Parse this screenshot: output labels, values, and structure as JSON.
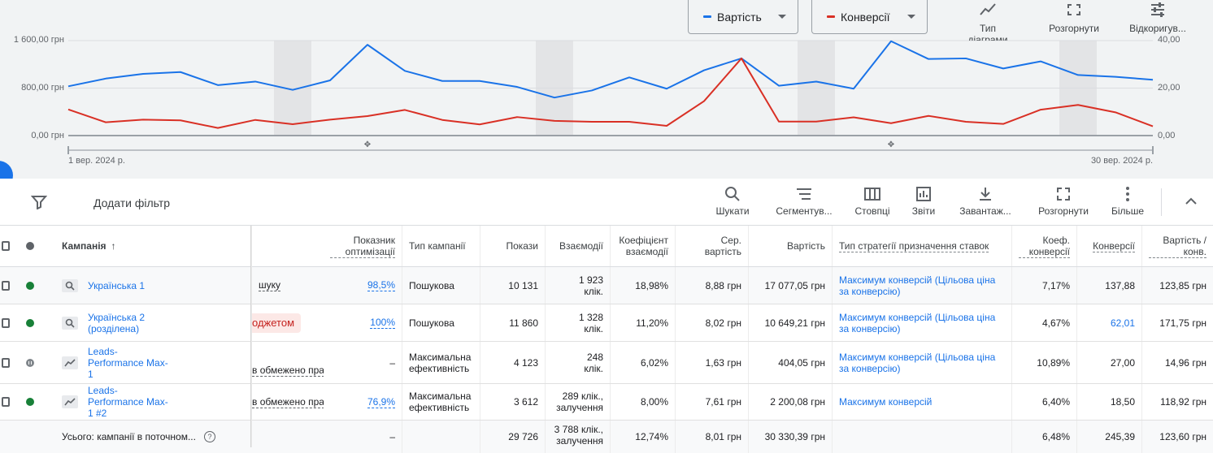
{
  "chart": {
    "metric1_label": "Вартість",
    "metric1_color": "#1a73e8",
    "metric2_label": "Конверсії",
    "metric2_color": "#d93025",
    "tools": [
      {
        "label": "Тип діаграми",
        "icon": "line-chart-icon"
      },
      {
        "label": "Розгорнути",
        "icon": "expand-icon"
      },
      {
        "label": "Відкоригув...",
        "icon": "tune-icon"
      }
    ],
    "y_left_ticks": [
      "1 600,00 грн",
      "800,00 грн",
      "0,00 грн"
    ],
    "y_right_ticks": [
      "40,00",
      "20,00",
      "0,00"
    ],
    "x_start": "1 вер. 2024 р.",
    "x_end": "30 вер. 2024 р."
  },
  "chart_data": {
    "type": "line",
    "x": [
      "1",
      "2",
      "3",
      "4",
      "5",
      "6",
      "7",
      "8",
      "9",
      "10",
      "11",
      "12",
      "13",
      "14",
      "15",
      "16",
      "17",
      "18",
      "19",
      "20",
      "21",
      "22",
      "23",
      "24",
      "25",
      "26",
      "27",
      "28",
      "29",
      "30"
    ],
    "series": [
      {
        "name": "Вартість",
        "axis": "left",
        "color": "#1a73e8",
        "values": [
          830,
          960,
          1040,
          1070,
          850,
          910,
          770,
          930,
          1530,
          1090,
          920,
          920,
          820,
          640,
          760,
          980,
          790,
          1100,
          1300,
          840,
          910,
          790,
          1590,
          1290,
          1300,
          1130,
          1250,
          1020,
          990,
          940
        ]
      },
      {
        "name": "Конверсії",
        "axis": "right",
        "color": "#d93025",
        "values": [
          11,
          5.6,
          6.7,
          6.4,
          3.2,
          6.6,
          4.8,
          6.7,
          8.2,
          10.8,
          6.6,
          4.7,
          7.8,
          6.2,
          5.8,
          5.8,
          4.1,
          14.5,
          32.5,
          5.9,
          5.9,
          7.7,
          5.2,
          8.3,
          5.8,
          4.9,
          10.9,
          12.9,
          9.8,
          3.9
        ]
      }
    ],
    "ylim_left": [
      0,
      1600
    ],
    "ylim_right": [
      0,
      40
    ],
    "weekends": [
      7,
      14,
      21,
      28
    ],
    "xlabel": "",
    "ylabel": ""
  },
  "toolbar": {
    "add_filter": "Додати фільтр",
    "buttons": [
      {
        "label": "Шукати",
        "icon": "search-icon"
      },
      {
        "label": "Сегментув...",
        "icon": "segment-icon"
      },
      {
        "label": "Стовпці",
        "icon": "columns-icon"
      },
      {
        "label": "Звіти",
        "icon": "reports-icon"
      },
      {
        "label": "Завантаж...",
        "icon": "download-icon"
      },
      {
        "label": "Розгорнути",
        "icon": "fullscreen-icon"
      },
      {
        "label": "Більше",
        "icon": "more-vert-icon"
      }
    ]
  },
  "table": {
    "headers": {
      "campaign": "Кампанія",
      "opt_score": "Показник оптимізації",
      "type": "Тип кампанії",
      "impressions": "Покази",
      "interactions": "Взаємодії",
      "interaction_rate": "Коефіцієнт взаємодії",
      "avg_cost": "Сер. вартість",
      "cost": "Вартість",
      "bid_strategy": "Тип стратегії призначення ставок",
      "conv_rate": "Коеф. конверсії",
      "conversions": "Конверсії",
      "cost_per_conv": "Вартість / конв."
    },
    "rows": [
      {
        "status": "enabled",
        "name": "Українська 1",
        "status_text": "шуку",
        "opt_score": "98,5%",
        "type": "Пошукова",
        "impressions": "10 131",
        "interactions": "1 923 клік.",
        "interaction_rate": "18,98%",
        "avg_cost": "8,88 грн",
        "cost": "17 077,05 грн",
        "bid_strategy": "Максимум конверсій (Цільова ціна за конверсію)",
        "conv_rate": "7,17%",
        "conversions": "137,88",
        "cost_per_conv": "123,85 грн",
        "icon": "search-campaign-icon"
      },
      {
        "status": "enabled",
        "name": "Українська 2 (розділена)",
        "status_text": "оджетом",
        "opt_score": "100%",
        "type": "Пошукова",
        "impressions": "11 860",
        "interactions": "1 328 клік.",
        "interaction_rate": "11,20%",
        "avg_cost": "8,02 грн",
        "cost": "10 649,21 грн",
        "bid_strategy": "Максимум конверсій (Цільова ціна за конверсію)",
        "conv_rate": "4,67%",
        "conversions": "62,01",
        "cost_per_conv": "171,75 грн",
        "icon": "search-campaign-icon"
      },
      {
        "status": "paused",
        "name": "Leads-Performance Max-1",
        "status_text": "в обмежено пра",
        "opt_score": "–",
        "type": "Максимальна ефективність",
        "impressions": "4 123",
        "interactions": "248 клік.",
        "interaction_rate": "6,02%",
        "avg_cost": "1,63 грн",
        "cost": "404,05 грн",
        "bid_strategy": "Максимум конверсій (Цільова ціна за конверсію)",
        "conv_rate": "10,89%",
        "conversions": "27,00",
        "cost_per_conv": "14,96 грн",
        "icon": "pmax-campaign-icon"
      },
      {
        "status": "enabled",
        "name": "Leads-Performance Max-1 #2",
        "status_text": "в обмежено пра",
        "opt_score": "76,9%",
        "type": "Максимальна ефективність",
        "impressions": "3 612",
        "interactions": "289 клік., залучення",
        "interaction_rate": "8,00%",
        "avg_cost": "7,61 грн",
        "cost": "2 200,08 грн",
        "bid_strategy": "Максимум конверсій",
        "conv_rate": "6,40%",
        "conversions": "18,50",
        "cost_per_conv": "118,92 грн",
        "icon": "pmax-campaign-icon"
      }
    ],
    "total": {
      "label": "Усього: кампанії в поточном...",
      "opt_score": "–",
      "impressions": "29 726",
      "interactions": "3 788 клік., залучення",
      "interaction_rate": "12,74%",
      "avg_cost": "8,01 грн",
      "cost": "30 330,39 грн",
      "conv_rate": "6,48%",
      "conversions": "245,39",
      "cost_per_conv": "123,60 грн"
    }
  }
}
